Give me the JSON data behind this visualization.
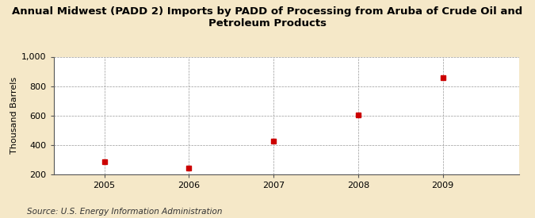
{
  "title": "Annual Midwest (PADD 2) Imports by PADD of Processing from Aruba of Crude Oil and\nPetroleum Products",
  "ylabel": "Thousand Barrels",
  "source": "Source: U.S. Energy Information Administration",
  "x_values": [
    2005,
    2006,
    2007,
    2008,
    2009
  ],
  "y_values": [
    285,
    243,
    425,
    603,
    858
  ],
  "ylim": [
    200,
    1000
  ],
  "yticks": [
    200,
    400,
    600,
    800,
    1000
  ],
  "xlim": [
    2004.4,
    2009.9
  ],
  "xticks": [
    2005,
    2006,
    2007,
    2008,
    2009
  ],
  "marker_color": "#cc0000",
  "marker_size": 4,
  "fig_bg_color": "#f5e8c8",
  "plot_bg_color": "#ffffff",
  "grid_color": "#999999",
  "title_fontsize": 9.5,
  "axis_fontsize": 8,
  "ylabel_fontsize": 8,
  "source_fontsize": 7.5
}
